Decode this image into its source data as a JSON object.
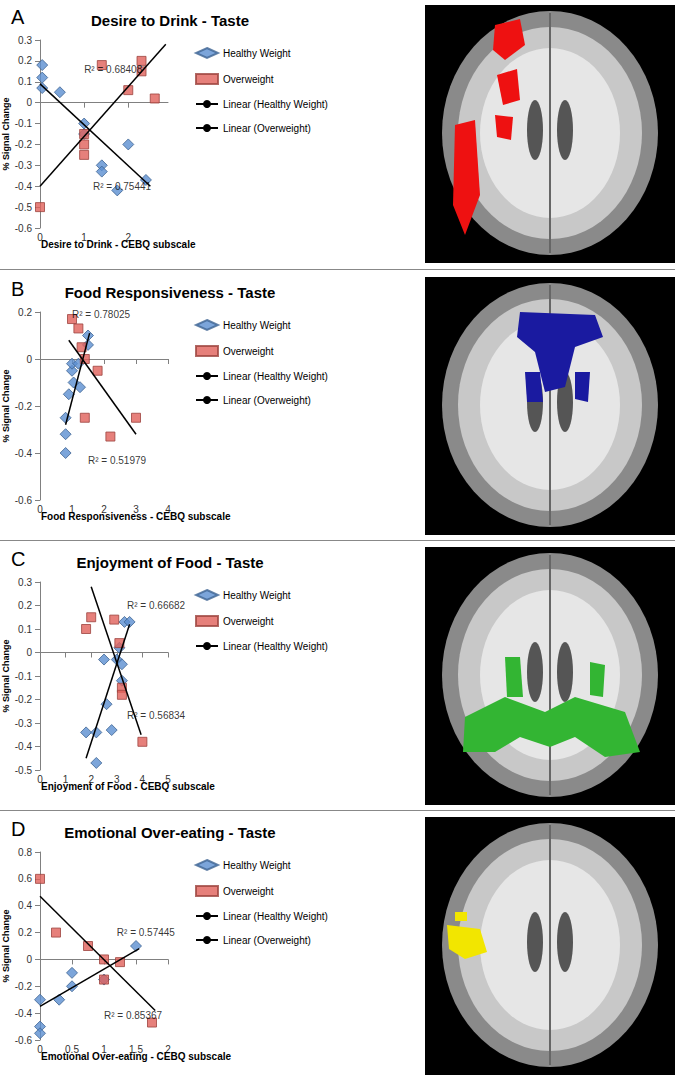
{
  "chart_data": [
    {
      "type": "scatter",
      "panel_label": "A",
      "title": "Desire to Drink - Taste",
      "x_label": "Desire to Drink - CEBQ subscale",
      "y_label": "% Signal Change",
      "xlim": [
        0,
        2.9
      ],
      "xticks": [
        0,
        1,
        2
      ],
      "ylim": [
        -0.6,
        0.3
      ],
      "yticks": [
        -0.6,
        -0.5,
        -0.4,
        -0.3,
        -0.2,
        -0.1,
        0,
        0.1,
        0.2,
        0.3
      ],
      "grid": false,
      "legend": "right",
      "series": [
        {
          "name": "Healthy Weight",
          "type": "scatter",
          "color": "#5b8fd1",
          "marker": "diamond",
          "x": [
            0.05,
            0.05,
            0.05,
            0.45,
            1.0,
            1.0,
            1.4,
            1.4,
            1.75,
            2.0,
            2.4
          ],
          "values": [
            0.18,
            0.12,
            0.07,
            0.05,
            -0.1,
            -0.15,
            -0.3,
            -0.33,
            -0.42,
            -0.2,
            -0.37
          ]
        },
        {
          "name": "Overweight",
          "type": "scatter",
          "color": "#e0605a",
          "marker": "square",
          "x": [
            0.0,
            1.0,
            1.0,
            1.0,
            1.4,
            2.0,
            2.3,
            2.3,
            2.6
          ],
          "values": [
            -0.5,
            -0.15,
            -0.2,
            -0.25,
            0.18,
            0.06,
            0.2,
            0.15,
            0.02
          ]
        },
        {
          "name": "Linear (Healthy Weight)",
          "type": "line",
          "color": "#000000",
          "marker": "none",
          "x": [
            0.0,
            2.5
          ],
          "values": [
            0.09,
            -0.4
          ]
        },
        {
          "name": "Linear (Overweight)",
          "type": "line",
          "color": "#000000",
          "marker": "none",
          "x": [
            0.0,
            2.85
          ],
          "values": [
            -0.4,
            0.28
          ]
        }
      ],
      "annotations": [
        {
          "text": "R² = 0.68408",
          "x": 1.0,
          "y": 0.16
        },
        {
          "text": "R² = 0.75441",
          "x": 1.2,
          "y": -0.4
        }
      ]
    },
    {
      "type": "scatter",
      "panel_label": "B",
      "title": "Food Responsiveness - Taste",
      "x_label": "Food Responsiveness - CEBQ subscale",
      "y_label": "% Signal Change",
      "xlim": [
        0,
        4
      ],
      "xticks": [
        0,
        1,
        2,
        3,
        4
      ],
      "ylim": [
        -0.6,
        0.2
      ],
      "yticks": [
        -0.6,
        -0.4,
        -0.2,
        0,
        0.2
      ],
      "grid": false,
      "legend": "right",
      "series": [
        {
          "name": "Healthy Weight",
          "type": "scatter",
          "color": "#5b8fd1",
          "marker": "diamond",
          "x": [
            0.8,
            0.8,
            0.8,
            0.9,
            1.0,
            1.0,
            1.05,
            1.2,
            1.25,
            1.5,
            1.5
          ],
          "values": [
            -0.25,
            -0.32,
            -0.4,
            -0.15,
            -0.05,
            -0.02,
            -0.1,
            -0.02,
            -0.12,
            0.1,
            0.06
          ]
        },
        {
          "name": "Overweight",
          "type": "scatter",
          "color": "#e0605a",
          "marker": "square",
          "x": [
            1.0,
            1.2,
            1.3,
            1.4,
            1.4,
            1.8,
            2.2,
            3.0
          ],
          "values": [
            0.17,
            0.13,
            0.05,
            0.0,
            -0.25,
            -0.05,
            -0.33,
            -0.25
          ]
        },
        {
          "name": "Linear (Healthy Weight)",
          "type": "line",
          "color": "#000000",
          "marker": "none",
          "x": [
            0.8,
            1.55
          ],
          "values": [
            -0.28,
            0.11
          ]
        },
        {
          "name": "Linear (Overweight)",
          "type": "line",
          "color": "#000000",
          "marker": "none",
          "x": [
            0.9,
            3.0
          ],
          "values": [
            0.08,
            -0.32
          ]
        }
      ],
      "annotations": [
        {
          "text": "R² = 0.78025",
          "x": 1.0,
          "y": 0.19
        },
        {
          "text": "R² = 0.51979",
          "x": 1.5,
          "y": -0.43
        }
      ]
    },
    {
      "type": "scatter",
      "panel_label": "C",
      "title": "Enjoyment of Food - Taste",
      "x_label": "Enjoyment of Food - CEBQ subscale",
      "y_label": "% Signal Change",
      "xlim": [
        0,
        5
      ],
      "xticks": [
        0,
        1,
        2,
        3,
        4,
        5
      ],
      "ylim": [
        -0.5,
        0.3
      ],
      "yticks": [
        -0.5,
        -0.4,
        -0.3,
        -0.2,
        -0.1,
        0,
        0.1,
        0.2,
        0.3
      ],
      "grid": false,
      "legend": "right",
      "series": [
        {
          "name": "Healthy Weight",
          "type": "scatter",
          "color": "#5b8fd1",
          "marker": "diamond",
          "x": [
            1.8,
            2.2,
            2.2,
            2.5,
            2.6,
            2.8,
            3.0,
            3.1,
            3.2,
            3.2,
            3.3,
            3.5
          ],
          "values": [
            -0.34,
            -0.34,
            -0.47,
            -0.03,
            -0.22,
            -0.33,
            -0.03,
            0.02,
            -0.12,
            -0.05,
            0.13,
            0.13
          ]
        },
        {
          "name": "Overweight",
          "type": "scatter",
          "color": "#e0605a",
          "marker": "square",
          "x": [
            1.8,
            2.0,
            2.9,
            3.1,
            3.2,
            3.2,
            4.0
          ],
          "values": [
            0.1,
            0.15,
            0.14,
            0.04,
            -0.15,
            -0.18,
            -0.38
          ]
        },
        {
          "name": "Linear (Healthy Weight)",
          "type": "line",
          "color": "#000000",
          "marker": "none",
          "x": [
            1.8,
            3.5
          ],
          "values": [
            -0.45,
            0.12
          ]
        },
        {
          "name": null,
          "type": "line",
          "color": "#000000",
          "marker": "none",
          "x": [
            2.0,
            3.95
          ],
          "values": [
            0.28,
            -0.35
          ]
        }
      ],
      "annotations": [
        {
          "text": "R² = 0.66682",
          "x": 3.4,
          "y": 0.2
        },
        {
          "text": "R² = 0.56834",
          "x": 3.4,
          "y": -0.27
        }
      ]
    },
    {
      "type": "scatter",
      "panel_label": "D",
      "title": "Emotional Over-eating - Taste",
      "x_label": "Emotional Over-eating - CEBQ subscale",
      "y_label": "% Signal Change",
      "xlim": [
        0,
        2
      ],
      "xticks": [
        0,
        0.5,
        1,
        1.5,
        2
      ],
      "ylim": [
        -0.6,
        0.8
      ],
      "yticks": [
        -0.6,
        -0.4,
        -0.2,
        0,
        0.2,
        0.4,
        0.6,
        0.8
      ],
      "grid": false,
      "legend": "right",
      "series": [
        {
          "name": "Healthy Weight",
          "type": "scatter",
          "color": "#5b8fd1",
          "marker": "diamond",
          "x": [
            0.0,
            0.0,
            0.0,
            0.3,
            0.5,
            0.5,
            1.0,
            1.5
          ],
          "values": [
            -0.3,
            -0.5,
            -0.55,
            -0.3,
            -0.1,
            -0.2,
            -0.15,
            0.1
          ]
        },
        {
          "name": "Overweight",
          "type": "scatter",
          "color": "#e0605a",
          "marker": "square",
          "x": [
            0.0,
            0.25,
            0.75,
            1.0,
            1.0,
            1.25,
            1.75
          ],
          "values": [
            0.6,
            0.2,
            0.1,
            0.0,
            -0.15,
            -0.02,
            -0.47
          ]
        },
        {
          "name": "Linear (Healthy Weight)",
          "type": "line",
          "color": "#000000",
          "marker": "none",
          "x": [
            0.0,
            1.55
          ],
          "values": [
            -0.35,
            0.08
          ]
        },
        {
          "name": "Linear (Overweight)",
          "type": "line",
          "color": "#000000",
          "marker": "none",
          "x": [
            0.0,
            1.8
          ],
          "values": [
            0.47,
            -0.38
          ]
        }
      ],
      "annotations": [
        {
          "text": "R² = 0.57445",
          "x": 1.2,
          "y": 0.2
        },
        {
          "text": "R² = 0.85367",
          "x": 1.0,
          "y": -0.42
        }
      ]
    }
  ]
}
